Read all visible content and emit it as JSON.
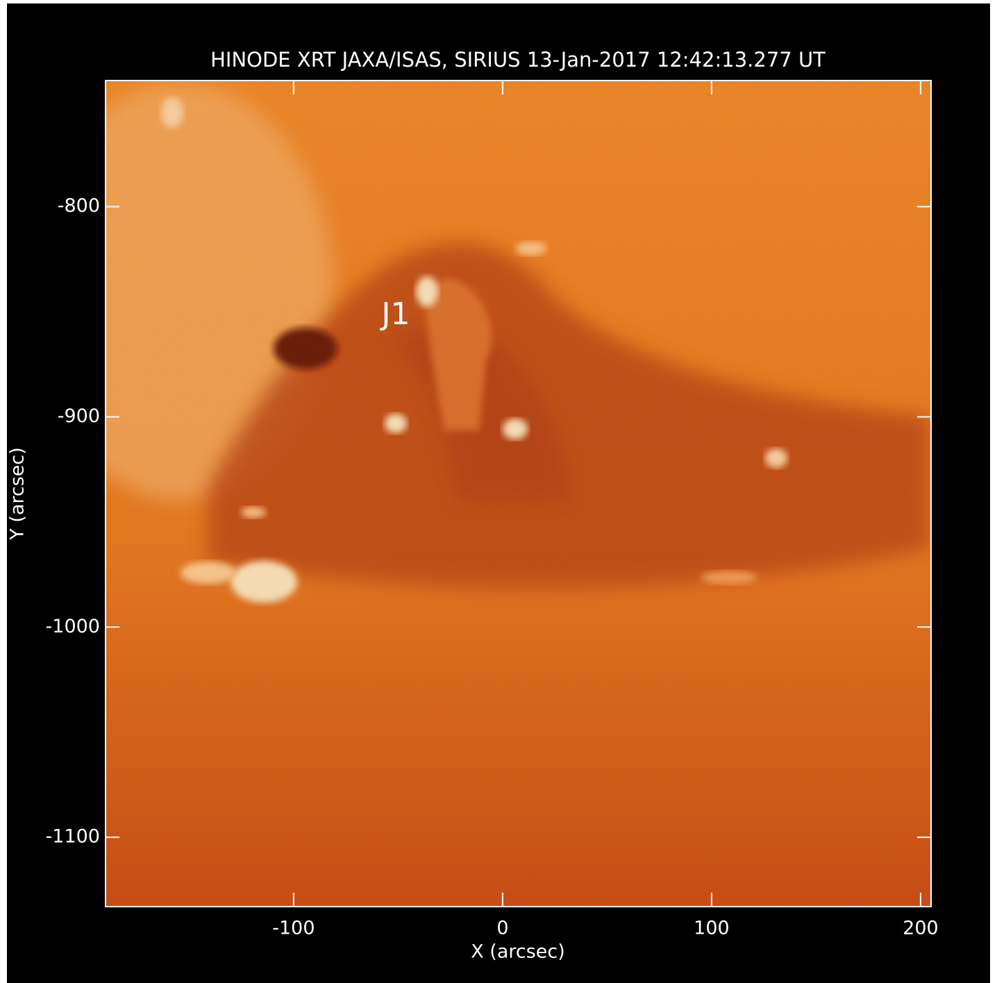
{
  "chart_data": {
    "type": "image",
    "title": "HINODE XRT JAXA/ISAS, SIRIUS 13-Jan-2017 12:42:13.277 UT",
    "xlabel": "X (arcsec)",
    "ylabel": "Y (arcsec)",
    "annotation": "J1",
    "xlim": [
      -190,
      205
    ],
    "ylim": [
      -1133,
      -740
    ],
    "xticks": [
      -100,
      0,
      100,
      200
    ],
    "yticks": [
      -800,
      -900,
      -1000,
      -1100
    ]
  }
}
